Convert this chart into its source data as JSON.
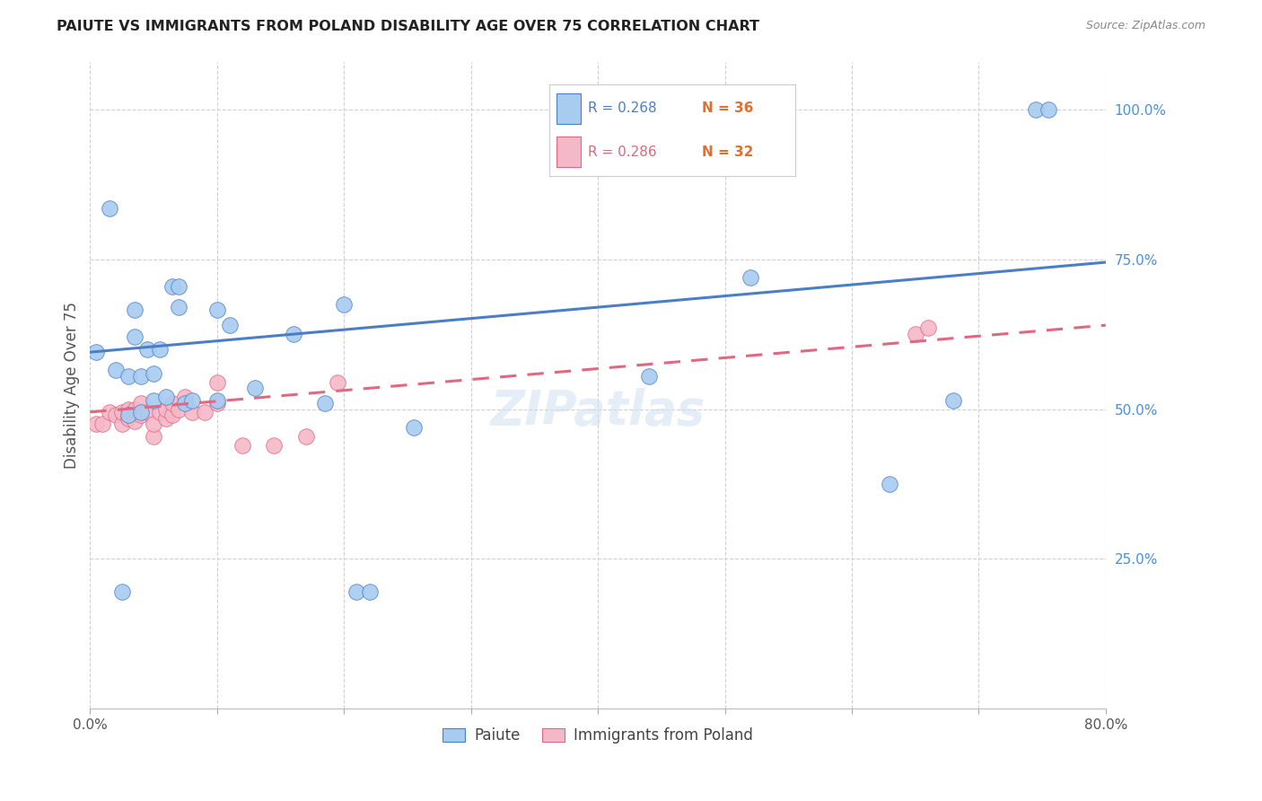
{
  "title": "PAIUTE VS IMMIGRANTS FROM POLAND DISABILITY AGE OVER 75 CORRELATION CHART",
  "source": "Source: ZipAtlas.com",
  "ylabel": "Disability Age Over 75",
  "xlim": [
    0.0,
    0.8
  ],
  "ylim": [
    0.0,
    1.08
  ],
  "ytick_positions": [
    0.25,
    0.5,
    0.75,
    1.0
  ],
  "ytick_labels": [
    "25.0%",
    "50.0%",
    "75.0%",
    "100.0%"
  ],
  "legend_label1": "Paiute",
  "legend_label2": "Immigrants from Poland",
  "R1": "R = 0.268",
  "N1": "N = 36",
  "R2": "R = 0.286",
  "N2": "N = 32",
  "color_paiute": "#A8CBF0",
  "color_poland": "#F5B8C8",
  "color_paiute_line": "#4A7EC7",
  "color_poland_line": "#E06880",
  "background_color": "#FFFFFF",
  "grid_color": "#D0D0D0",
  "paiute_x": [
    0.005,
    0.015,
    0.02,
    0.025,
    0.03,
    0.03,
    0.035,
    0.035,
    0.04,
    0.04,
    0.045,
    0.05,
    0.05,
    0.055,
    0.06,
    0.065,
    0.07,
    0.07,
    0.075,
    0.08,
    0.1,
    0.1,
    0.11,
    0.13,
    0.16,
    0.185,
    0.2,
    0.21,
    0.22,
    0.255,
    0.44,
    0.52,
    0.63,
    0.68,
    0.745,
    0.755
  ],
  "paiute_y": [
    0.595,
    0.835,
    0.565,
    0.195,
    0.49,
    0.555,
    0.62,
    0.665,
    0.495,
    0.555,
    0.6,
    0.515,
    0.56,
    0.6,
    0.52,
    0.705,
    0.67,
    0.705,
    0.51,
    0.515,
    0.515,
    0.665,
    0.64,
    0.535,
    0.625,
    0.51,
    0.675,
    0.195,
    0.195,
    0.47,
    0.555,
    0.72,
    0.375,
    0.515,
    1.0,
    1.0
  ],
  "poland_x": [
    0.005,
    0.01,
    0.015,
    0.02,
    0.025,
    0.025,
    0.03,
    0.03,
    0.035,
    0.035,
    0.04,
    0.04,
    0.045,
    0.05,
    0.05,
    0.055,
    0.06,
    0.06,
    0.065,
    0.065,
    0.07,
    0.075,
    0.08,
    0.09,
    0.1,
    0.1,
    0.12,
    0.145,
    0.17,
    0.195,
    0.65,
    0.66
  ],
  "poland_y": [
    0.475,
    0.475,
    0.495,
    0.49,
    0.475,
    0.495,
    0.485,
    0.5,
    0.48,
    0.5,
    0.49,
    0.51,
    0.495,
    0.455,
    0.475,
    0.495,
    0.485,
    0.5,
    0.49,
    0.51,
    0.5,
    0.52,
    0.495,
    0.495,
    0.51,
    0.545,
    0.44,
    0.44,
    0.455,
    0.545,
    0.625,
    0.635
  ],
  "paiute_line_y0": 0.595,
  "paiute_line_y1": 0.745,
  "poland_line_y0": 0.495,
  "poland_line_y1": 0.64
}
